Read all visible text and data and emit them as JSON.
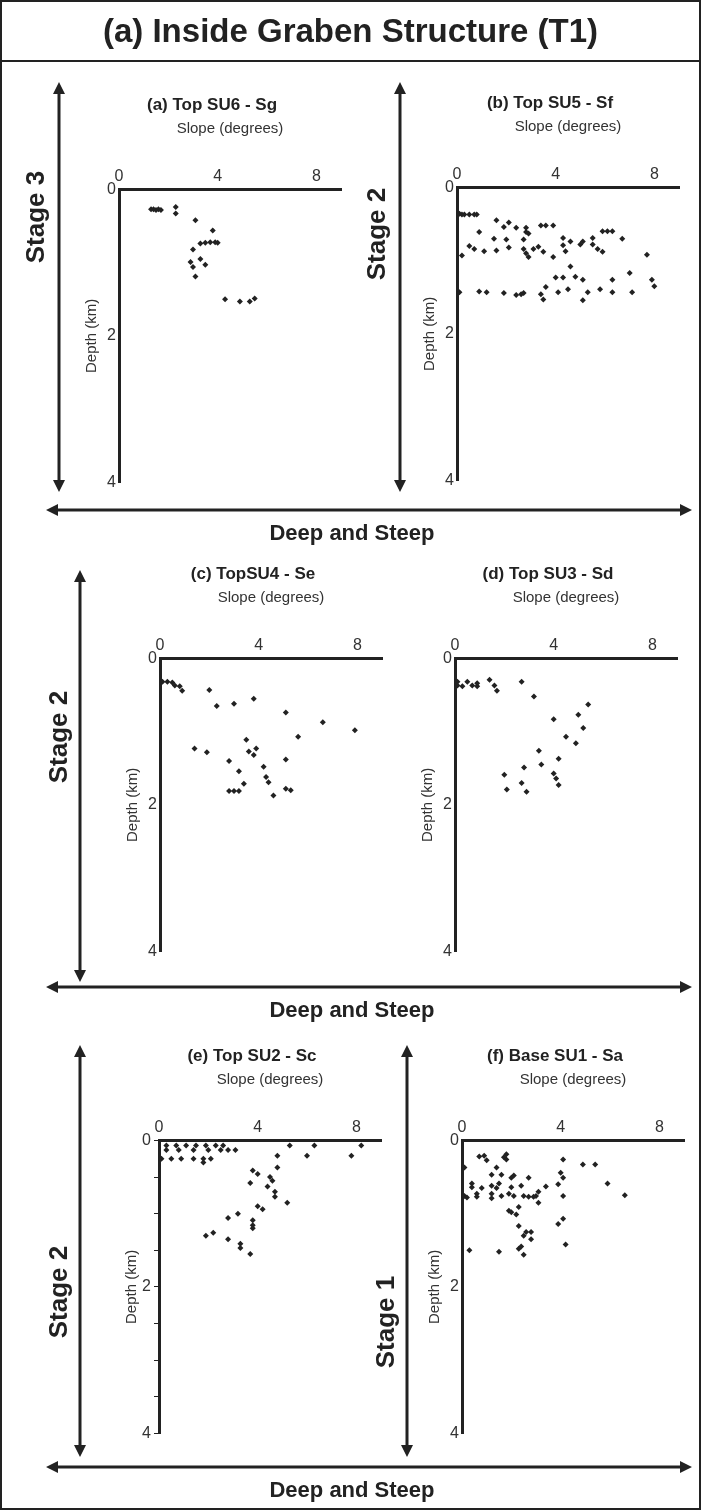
{
  "chart_data": [
    {
      "type": "other",
      "title": "(a) Inside Graben Structure (T1)"
    },
    {
      "type": "scatter",
      "title": "(a) Top SU6 - Sg",
      "xlabel": "Slope (degrees)",
      "ylabel": "Depth (km)",
      "color": "#222222",
      "marker": "diamond",
      "xlim": [
        0,
        9
      ],
      "ylim": [
        4,
        0
      ],
      "xticks": [
        0,
        4,
        8
      ],
      "yticks": [
        0,
        2,
        4
      ],
      "annotations": [
        "Stage 3",
        "Deep and Steep"
      ],
      "x": [
        1.3,
        1.4,
        1.5,
        1.6,
        1.7,
        2.3,
        2.3,
        3.1,
        3.8,
        3.3,
        3.5,
        3.7,
        3.9,
        4.0,
        3.0,
        3.3,
        2.9,
        3.0,
        3.1,
        3.5,
        4.3,
        4.9,
        5.3,
        5.5
      ],
      "values": [
        0.27,
        0.27,
        0.28,
        0.27,
        0.28,
        0.24,
        0.33,
        0.42,
        0.56,
        0.74,
        0.73,
        0.72,
        0.72,
        0.73,
        0.82,
        0.95,
        0.99,
        1.06,
        1.19,
        1.03,
        1.5,
        1.53,
        1.53,
        1.49
      ]
    },
    {
      "type": "scatter",
      "title": "(b) Top SU5 - Sf",
      "xlabel": "Slope (degrees)",
      "ylabel": "Depth (km)",
      "color": "#222222",
      "marker": "diamond",
      "xlim": [
        0,
        9
      ],
      "ylim": [
        4,
        0
      ],
      "xticks": [
        0,
        4,
        8
      ],
      "yticks": [
        0,
        2,
        4
      ],
      "annotations": [
        "Stage 2"
      ],
      "x": [
        0.1,
        0.2,
        0.3,
        0.5,
        0.7,
        0.8,
        1.6,
        2.1,
        1.9,
        2.4,
        2.8,
        2.8,
        2.9,
        3.4,
        3.6,
        3.9,
        0.9,
        1.5,
        2.0,
        2.7,
        4.3,
        4.6,
        4.3,
        5.0,
        5.1,
        5.5,
        5.9,
        6.1,
        6.3,
        6.7,
        5.5,
        5.7,
        5.9,
        0.5,
        0.7,
        1.1,
        1.6,
        2.1,
        2.7,
        2.8,
        2.9,
        3.1,
        3.3,
        3.5,
        3.9,
        4.4,
        0.2,
        7.7,
        4.6,
        4.0,
        4.3,
        4.8,
        5.1,
        7.0,
        6.3,
        7.9,
        8.0,
        3.6,
        4.1,
        4.5,
        3.4,
        3.5,
        5.3,
        5.8,
        6.3,
        7.1,
        5.1,
        0.1,
        0.9,
        1.2,
        1.9,
        2.4,
        2.6,
        2.7
      ],
      "values": [
        0.36,
        0.37,
        0.37,
        0.37,
        0.37,
        0.37,
        0.45,
        0.48,
        0.54,
        0.55,
        0.55,
        0.61,
        0.63,
        0.52,
        0.52,
        0.52,
        0.61,
        0.7,
        0.71,
        0.71,
        0.69,
        0.74,
        0.79,
        0.78,
        0.74,
        0.69,
        0.6,
        0.6,
        0.6,
        0.7,
        0.78,
        0.84,
        0.88,
        0.8,
        0.84,
        0.87,
        0.86,
        0.82,
        0.84,
        0.9,
        0.95,
        0.84,
        0.81,
        0.88,
        0.95,
        0.87,
        0.93,
        0.92,
        1.08,
        1.23,
        1.23,
        1.22,
        1.26,
        1.17,
        1.26,
        1.26,
        1.35,
        1.36,
        1.43,
        1.39,
        1.46,
        1.53,
        1.43,
        1.39,
        1.43,
        1.43,
        1.54,
        1.43,
        1.42,
        1.43,
        1.44,
        1.47,
        1.46,
        1.44
      ]
    },
    {
      "type": "scatter",
      "title": "(c) TopSU4 - Se",
      "xlabel": "Slope (degrees)",
      "ylabel": "Depth (km)",
      "color": "#222222",
      "marker": "diamond",
      "xlim": [
        0,
        9
      ],
      "ylim": [
        4,
        0
      ],
      "xticks": [
        0,
        4,
        8
      ],
      "yticks": [
        0,
        2,
        4
      ],
      "annotations": [
        "Stage 2",
        "Deep and Steep"
      ],
      "x": [
        0.1,
        0.3,
        0.5,
        0.6,
        0.8,
        0.9,
        2.0,
        2.3,
        3.0,
        3.8,
        5.1,
        6.6,
        7.9,
        5.6,
        3.5,
        1.4,
        1.9,
        3.6,
        3.9,
        3.8,
        5.1,
        2.8,
        4.2,
        3.2,
        4.3,
        4.4,
        3.4,
        2.8,
        3.0,
        3.2,
        4.6,
        5.1,
        5.3
      ],
      "values": [
        0.32,
        0.32,
        0.33,
        0.37,
        0.38,
        0.44,
        0.43,
        0.65,
        0.62,
        0.55,
        0.74,
        0.87,
        0.98,
        1.07,
        1.11,
        1.23,
        1.28,
        1.27,
        1.23,
        1.32,
        1.38,
        1.4,
        1.48,
        1.54,
        1.62,
        1.69,
        1.71,
        1.81,
        1.81,
        1.81,
        1.87,
        1.78,
        1.8
      ]
    },
    {
      "type": "scatter",
      "title": "(d) Top SU3 - Sd",
      "xlabel": "Slope (degrees)",
      "ylabel": "Depth (km)",
      "color": "#222222",
      "marker": "diamond",
      "xlim": [
        0,
        9
      ],
      "ylim": [
        4,
        0
      ],
      "xticks": [
        0,
        4,
        8
      ],
      "yticks": [
        0,
        2,
        4
      ],
      "x": [
        0.1,
        0.1,
        0.3,
        0.5,
        0.7,
        0.9,
        0.9,
        1.4,
        1.6,
        1.7,
        2.7,
        3.2,
        4.0,
        5.4,
        5.0,
        5.2,
        4.5,
        4.9,
        3.4,
        4.2,
        3.5,
        2.8,
        2.0,
        4.0,
        4.1,
        4.2,
        2.7,
        2.1,
        2.9
      ],
      "values": [
        0.32,
        0.37,
        0.38,
        0.32,
        0.37,
        0.34,
        0.38,
        0.29,
        0.37,
        0.44,
        0.32,
        0.52,
        0.83,
        0.63,
        0.77,
        0.95,
        1.07,
        1.16,
        1.26,
        1.37,
        1.45,
        1.49,
        1.59,
        1.57,
        1.64,
        1.73,
        1.7,
        1.79,
        1.82
      ]
    },
    {
      "type": "scatter",
      "title": "(e) Top SU2 - Sc",
      "xlabel": "Slope (degrees)",
      "ylabel": "Depth (km)",
      "color": "#222222",
      "marker": "diamond",
      "xlim": [
        0,
        9
      ],
      "ylim": [
        4,
        0
      ],
      "xticks": [
        0,
        4,
        8
      ],
      "yticks": [
        0,
        {
          "value": 0.5,
          "label": null
        },
        {
          "value": 1,
          "label": null
        },
        {
          "value": 1.5,
          "label": null
        },
        2,
        {
          "value": 2.5,
          "label": null
        },
        {
          "value": 3,
          "label": null
        },
        {
          "value": 3.5,
          "label": null
        },
        4
      ],
      "annotations": [
        "Stage 2",
        "Deep and Steep"
      ],
      "x": [
        0.3,
        0.7,
        1.1,
        1.5,
        1.9,
        2.3,
        2.6,
        0.3,
        0.8,
        1.4,
        2.0,
        2.5,
        2.8,
        3.1,
        0.1,
        0.5,
        0.9,
        1.4,
        1.8,
        2.1,
        1.8,
        5.3,
        6.3,
        8.2,
        6.0,
        7.8,
        4.8,
        4.8,
        3.8,
        4.0,
        4.5,
        4.6,
        3.7,
        4.4,
        4.7,
        4.7,
        5.2,
        4.0,
        4.2,
        3.2,
        2.8,
        3.8,
        3.8,
        3.8,
        2.2,
        1.9,
        2.8,
        3.3,
        3.3,
        3.7
      ],
      "values": [
        0.07,
        0.07,
        0.07,
        0.07,
        0.07,
        0.07,
        0.07,
        0.13,
        0.13,
        0.13,
        0.13,
        0.13,
        0.13,
        0.13,
        0.25,
        0.25,
        0.25,
        0.25,
        0.25,
        0.25,
        0.3,
        0.07,
        0.07,
        0.07,
        0.21,
        0.21,
        0.21,
        0.37,
        0.41,
        0.46,
        0.5,
        0.55,
        0.58,
        0.63,
        0.7,
        0.77,
        0.85,
        0.9,
        0.94,
        1.0,
        1.06,
        1.09,
        1.16,
        1.2,
        1.26,
        1.3,
        1.35,
        1.41,
        1.47,
        1.55
      ]
    },
    {
      "type": "scatter",
      "title": "(f) Base SU1 - Sa",
      "xlabel": "Slope (degrees)",
      "ylabel": "Depth (km)",
      "color": "#222222",
      "marker": "diamond",
      "xlim": [
        0,
        9
      ],
      "ylim": [
        4,
        0
      ],
      "xticks": [
        0,
        4,
        8
      ],
      "yticks": [
        0,
        2,
        4
      ],
      "annotations": [
        "Stage 1"
      ],
      "x": [
        0.1,
        0.7,
        0.9,
        1.0,
        1.8,
        1.7,
        1.8,
        1.4,
        1.2,
        1.6,
        2.1,
        2.0,
        2.7,
        0.4,
        0.4,
        0.8,
        1.2,
        1.4,
        1.5,
        2.0,
        2.4,
        3.4,
        3.9,
        4.0,
        4.1,
        4.1,
        4.9,
        5.4,
        5.9,
        6.6,
        0.1,
        0.2,
        0.6,
        0.6,
        1.2,
        1.2,
        1.6,
        1.9,
        2.1,
        2.5,
        2.7,
        2.9,
        3.0,
        3.1,
        3.1,
        4.1,
        1.9,
        2.0,
        2.2,
        2.3,
        3.9,
        4.1,
        2.3,
        2.6,
        2.8,
        2.5,
        2.8,
        4.2,
        0.3,
        1.5,
        2.3,
        2.4,
        2.5
      ],
      "values": [
        0.37,
        0.22,
        0.21,
        0.27,
        0.19,
        0.23,
        0.26,
        0.37,
        0.47,
        0.47,
        0.48,
        0.51,
        0.51,
        0.59,
        0.64,
        0.65,
        0.62,
        0.65,
        0.59,
        0.64,
        0.62,
        0.63,
        0.6,
        0.44,
        0.51,
        0.26,
        0.33,
        0.33,
        0.59,
        0.75,
        0.76,
        0.78,
        0.73,
        0.77,
        0.73,
        0.79,
        0.76,
        0.73,
        0.76,
        0.76,
        0.77,
        0.77,
        0.76,
        0.7,
        0.85,
        0.76,
        0.96,
        0.98,
        1.01,
        0.91,
        1.14,
        1.07,
        1.17,
        1.25,
        1.25,
        1.3,
        1.35,
        1.42,
        1.5,
        1.52,
        1.48,
        1.45,
        1.56
      ]
    }
  ]
}
